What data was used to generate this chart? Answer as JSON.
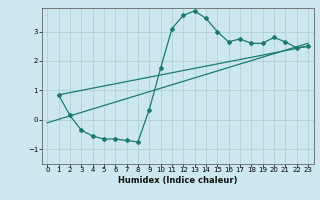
{
  "title": "",
  "xlabel": "Humidex (Indice chaleur)",
  "ylabel": "",
  "background_color": "#cce8ee",
  "line_color": "#1a7a6e",
  "grid_color": "#aacccc",
  "xlim": [
    -0.5,
    23.5
  ],
  "ylim": [
    -1.5,
    3.8
  ],
  "yticks": [
    -1,
    0,
    1,
    2,
    3
  ],
  "xticks": [
    0,
    1,
    2,
    3,
    4,
    5,
    6,
    7,
    8,
    9,
    10,
    11,
    12,
    13,
    14,
    15,
    16,
    17,
    18,
    19,
    20,
    21,
    22,
    23
  ],
  "curve1_x": [
    1,
    2,
    3,
    4,
    5,
    6,
    7,
    8,
    9,
    10,
    11,
    12,
    13,
    14,
    15,
    16,
    17,
    18,
    19,
    20,
    21,
    22,
    23
  ],
  "curve1_y": [
    0.85,
    0.15,
    -0.35,
    -0.55,
    -0.65,
    -0.65,
    -0.7,
    -0.75,
    0.35,
    1.75,
    3.1,
    3.55,
    3.7,
    3.45,
    3.0,
    2.65,
    2.75,
    2.6,
    2.6,
    2.8,
    2.65,
    2.45,
    2.5
  ],
  "line1_x": [
    1,
    23
  ],
  "line1_y": [
    0.85,
    2.5
  ],
  "line2_x": [
    0,
    23
  ],
  "line2_y": [
    -0.1,
    2.6
  ]
}
